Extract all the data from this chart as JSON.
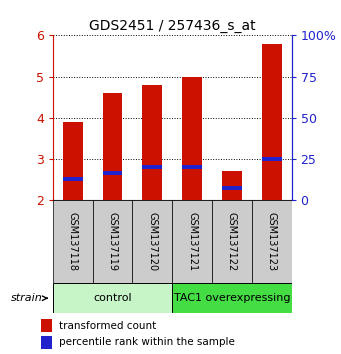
{
  "title": "GDS2451 / 257436_s_at",
  "samples": [
    "GSM137118",
    "GSM137119",
    "GSM137120",
    "GSM137121",
    "GSM137122",
    "GSM137123"
  ],
  "transformed_counts": [
    3.9,
    4.6,
    4.8,
    5.0,
    2.7,
    5.8
  ],
  "percentile_ranks": [
    2.5,
    2.65,
    2.8,
    2.8,
    2.3,
    3.0
  ],
  "ymin": 2.0,
  "ymax": 6.0,
  "yticks": [
    2,
    3,
    4,
    5,
    6
  ],
  "right_yticks": [
    0,
    25,
    50,
    75,
    100
  ],
  "right_yticklabels": [
    "0",
    "25",
    "50",
    "75",
    "100%"
  ],
  "groups": [
    {
      "label": "control",
      "start": 0,
      "end": 3,
      "color": "#c8f5c8"
    },
    {
      "label": "TAC1 overexpressing",
      "start": 3,
      "end": 6,
      "color": "#44dd44"
    }
  ],
  "bar_color": "#cc1100",
  "percentile_color": "#2222cc",
  "bar_width": 0.5,
  "tick_color_left": "#cc1100",
  "tick_color_right": "#2222cc",
  "xlabel_area_color": "#cccccc",
  "legend_red_label": "transformed count",
  "legend_blue_label": "percentile rank within the sample",
  "strain_label": "strain"
}
